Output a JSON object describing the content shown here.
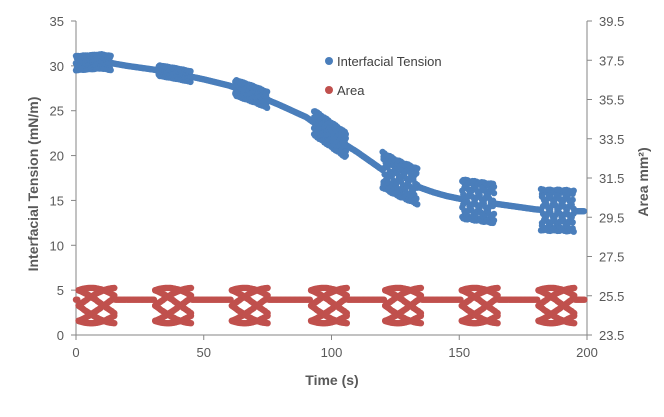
{
  "chart_data": {
    "type": "scatter",
    "xlabel": "Time (s)",
    "ylabel": "Interfacial Tension (mN/m)",
    "y2label": "Area mm²)",
    "xlim": [
      0,
      200
    ],
    "ylim": [
      0,
      35
    ],
    "y2lim": [
      23.5,
      39.5
    ],
    "x_ticks": [
      "0",
      "50",
      "100",
      "150",
      "200"
    ],
    "y_ticks": [
      "0",
      "5",
      "10",
      "15",
      "20",
      "25",
      "30",
      "35"
    ],
    "y2_ticks": [
      "23.5",
      "25.5",
      "27.5",
      "29.5",
      "31.5",
      "33.5",
      "35.5",
      "37.5",
      "39.5"
    ],
    "grid": false,
    "legend_position": "top-center",
    "series": [
      {
        "name": "Interfacial Tension",
        "color": "#4A7EBB",
        "axis": "left",
        "trend": [
          [
            0,
            30.3
          ],
          [
            10,
            30.5
          ],
          [
            20,
            30.0
          ],
          [
            30,
            29.6
          ],
          [
            40,
            29.1
          ],
          [
            50,
            28.5
          ],
          [
            60,
            27.8
          ],
          [
            70,
            26.8
          ],
          [
            80,
            25.6
          ],
          [
            90,
            24.3
          ],
          [
            95,
            23.3
          ],
          [
            100,
            22.3
          ],
          [
            105,
            21.3
          ],
          [
            110,
            20.4
          ],
          [
            115,
            19.4
          ],
          [
            120,
            18.4
          ],
          [
            125,
            17.6
          ],
          [
            130,
            17.0
          ],
          [
            135,
            16.4
          ],
          [
            140,
            15.9
          ],
          [
            145,
            15.5
          ],
          [
            150,
            15.2
          ],
          [
            155,
            15.0
          ],
          [
            160,
            14.8
          ],
          [
            165,
            14.6
          ],
          [
            170,
            14.4
          ],
          [
            175,
            14.2
          ],
          [
            180,
            14.0
          ],
          [
            185,
            13.9
          ],
          [
            190,
            13.9
          ],
          [
            195,
            13.8
          ],
          [
            199,
            13.8
          ]
        ],
        "oscillation_windows": [
          {
            "start": 0,
            "end": 14,
            "amplitude": 0.8
          },
          {
            "start": 32,
            "end": 45,
            "amplitude": 0.6
          },
          {
            "start": 62,
            "end": 75,
            "amplitude": 0.9
          },
          {
            "start": 93,
            "end": 106,
            "amplitude": 1.4
          },
          {
            "start": 120,
            "end": 134,
            "amplitude": 2.0
          },
          {
            "start": 151,
            "end": 164,
            "amplitude": 2.2
          },
          {
            "start": 182,
            "end": 195,
            "amplitude": 2.3
          }
        ]
      },
      {
        "name": "Area",
        "color": "#C0504D",
        "axis": "right",
        "baseline": 25.3,
        "oscillation_windows": [
          {
            "start": 1,
            "end": 15,
            "min": 24.1,
            "max": 25.9
          },
          {
            "start": 31,
            "end": 45,
            "min": 24.1,
            "max": 25.9
          },
          {
            "start": 61,
            "end": 75,
            "min": 24.1,
            "max": 25.9
          },
          {
            "start": 92,
            "end": 106,
            "min": 24.1,
            "max": 25.9
          },
          {
            "start": 121,
            "end": 135,
            "min": 24.1,
            "max": 25.9
          },
          {
            "start": 151,
            "end": 165,
            "min": 24.1,
            "max": 25.9
          },
          {
            "start": 181,
            "end": 195,
            "min": 24.1,
            "max": 25.9
          }
        ],
        "range": [
          0,
          199
        ]
      }
    ]
  }
}
